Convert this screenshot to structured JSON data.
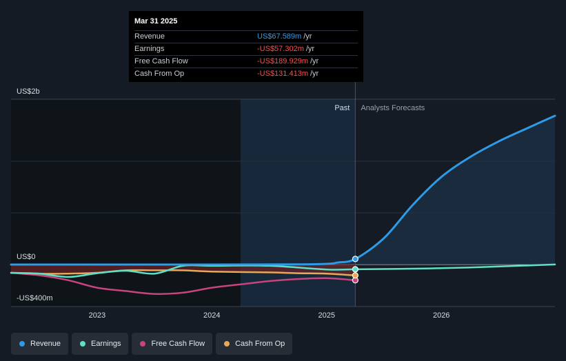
{
  "tooltip": {
    "date": "Mar 31 2025",
    "rows": [
      {
        "label": "Revenue",
        "value": "US$67.589m",
        "unit": "/yr",
        "color": "#2e9be6"
      },
      {
        "label": "Earnings",
        "value": "-US$57.302m",
        "unit": "/yr",
        "color": "#ff4d4d"
      },
      {
        "label": "Free Cash Flow",
        "value": "-US$189.929m",
        "unit": "/yr",
        "color": "#ff4d4d"
      },
      {
        "label": "Cash From Op",
        "value": "-US$131.413m",
        "unit": "/yr",
        "color": "#ff4d4d"
      }
    ]
  },
  "legend": [
    {
      "label": "Revenue",
      "color": "#2e9be6"
    },
    {
      "label": "Earnings",
      "color": "#5ee0c8"
    },
    {
      "label": "Free Cash Flow",
      "color": "#c8447e"
    },
    {
      "label": "Cash From Op",
      "color": "#e8a85a"
    }
  ],
  "chart_data": {
    "type": "line",
    "past_label": "Past",
    "forecast_label": "Analysts Forecasts",
    "y_tick_labels": [
      "US$2b",
      "US$0",
      "-US$400m"
    ],
    "x_tick_labels": [
      "2023",
      "2024",
      "2025",
      "2026"
    ],
    "ylim": [
      -400,
      2000
    ],
    "xlim": [
      2022.25,
      2026.99
    ],
    "divider_x": 2025.25,
    "highlight_start_x": 2024.25,
    "grid": true,
    "series": [
      {
        "name": "Revenue",
        "color": "#2e9be6",
        "x": [
          2022.25,
          2023.0,
          2024.0,
          2024.75,
          2025.0,
          2025.1,
          2025.25,
          2025.5,
          2025.75,
          2026.0,
          2026.25,
          2026.5,
          2026.75,
          2026.99
        ],
        "y": [
          0,
          0,
          0,
          2,
          8,
          25,
          67.6,
          320,
          720,
          1060,
          1300,
          1490,
          1650,
          1800
        ]
      },
      {
        "name": "Earnings",
        "color": "#5ee0c8",
        "x": [
          2022.25,
          2022.5,
          2022.75,
          2023.0,
          2023.25,
          2023.5,
          2023.75,
          2024.0,
          2024.5,
          2025.0,
          2025.25,
          2025.75,
          2026.25,
          2026.99
        ],
        "y": [
          -100,
          -110,
          -150,
          -105,
          -75,
          -110,
          -15,
          -15,
          -15,
          -60,
          -57.3,
          -50,
          -35,
          1
        ]
      },
      {
        "name": "Free Cash Flow",
        "color": "#c8447e",
        "x": [
          2022.25,
          2022.5,
          2022.75,
          2023.0,
          2023.25,
          2023.5,
          2023.75,
          2024.0,
          2024.25,
          2024.5,
          2024.75,
          2025.0,
          2025.25
        ],
        "y": [
          -100,
          -130,
          -190,
          -280,
          -320,
          -355,
          -340,
          -280,
          -240,
          -200,
          -175,
          -165,
          -189.9
        ]
      },
      {
        "name": "Cash From Op",
        "color": "#e8a85a",
        "x": [
          2022.25,
          2022.5,
          2022.75,
          2023.0,
          2023.25,
          2023.5,
          2023.75,
          2024.0,
          2024.5,
          2024.75,
          2025.0,
          2025.25
        ],
        "y": [
          -100,
          -110,
          -110,
          -100,
          -70,
          -70,
          -70,
          -85,
          -95,
          -105,
          -110,
          -131.4
        ]
      }
    ]
  }
}
